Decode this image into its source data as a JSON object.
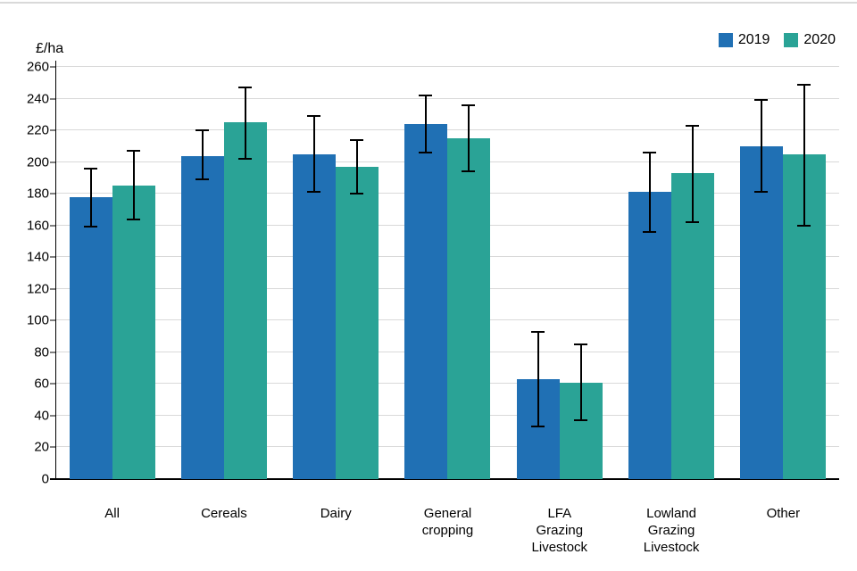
{
  "chart_data": {
    "type": "bar",
    "title": "",
    "xlabel": "",
    "ylabel": "£/ha",
    "ylim": [
      0,
      260
    ],
    "ytick_step": 20,
    "grid": true,
    "legend_position": "top-right",
    "categories": [
      "All",
      "Cereals",
      "Dairy",
      "General cropping",
      "LFA Grazing Livestock",
      "Lowland Grazing Livestock",
      "Other"
    ],
    "category_lines": [
      [
        "All"
      ],
      [
        "Cereals"
      ],
      [
        "Dairy"
      ],
      [
        "General",
        "cropping"
      ],
      [
        "LFA",
        "Grazing",
        "Livestock"
      ],
      [
        "Lowland",
        "Grazing",
        "Livestock"
      ],
      [
        "Other"
      ]
    ],
    "series": [
      {
        "name": "2019",
        "color": "#2070B4",
        "values": [
          178,
          204,
          205,
          224,
          63,
          181,
          210
        ],
        "error_low": [
          159,
          189,
          181,
          206,
          33,
          156,
          181
        ],
        "error_high": [
          196,
          220,
          229,
          242,
          93,
          206,
          239
        ]
      },
      {
        "name": "2020",
        "color": "#2AA396",
        "values": [
          185,
          225,
          197,
          215,
          61,
          193,
          205
        ],
        "error_low": [
          164,
          202,
          180,
          194,
          37,
          162,
          160
        ],
        "error_high": [
          207,
          247,
          214,
          236,
          85,
          223,
          249
        ]
      }
    ],
    "colors": {
      "gridline": "#d9d9d9",
      "axis": "#000000",
      "error_bar": "#000000",
      "top_border": "#d9d9d9"
    }
  }
}
